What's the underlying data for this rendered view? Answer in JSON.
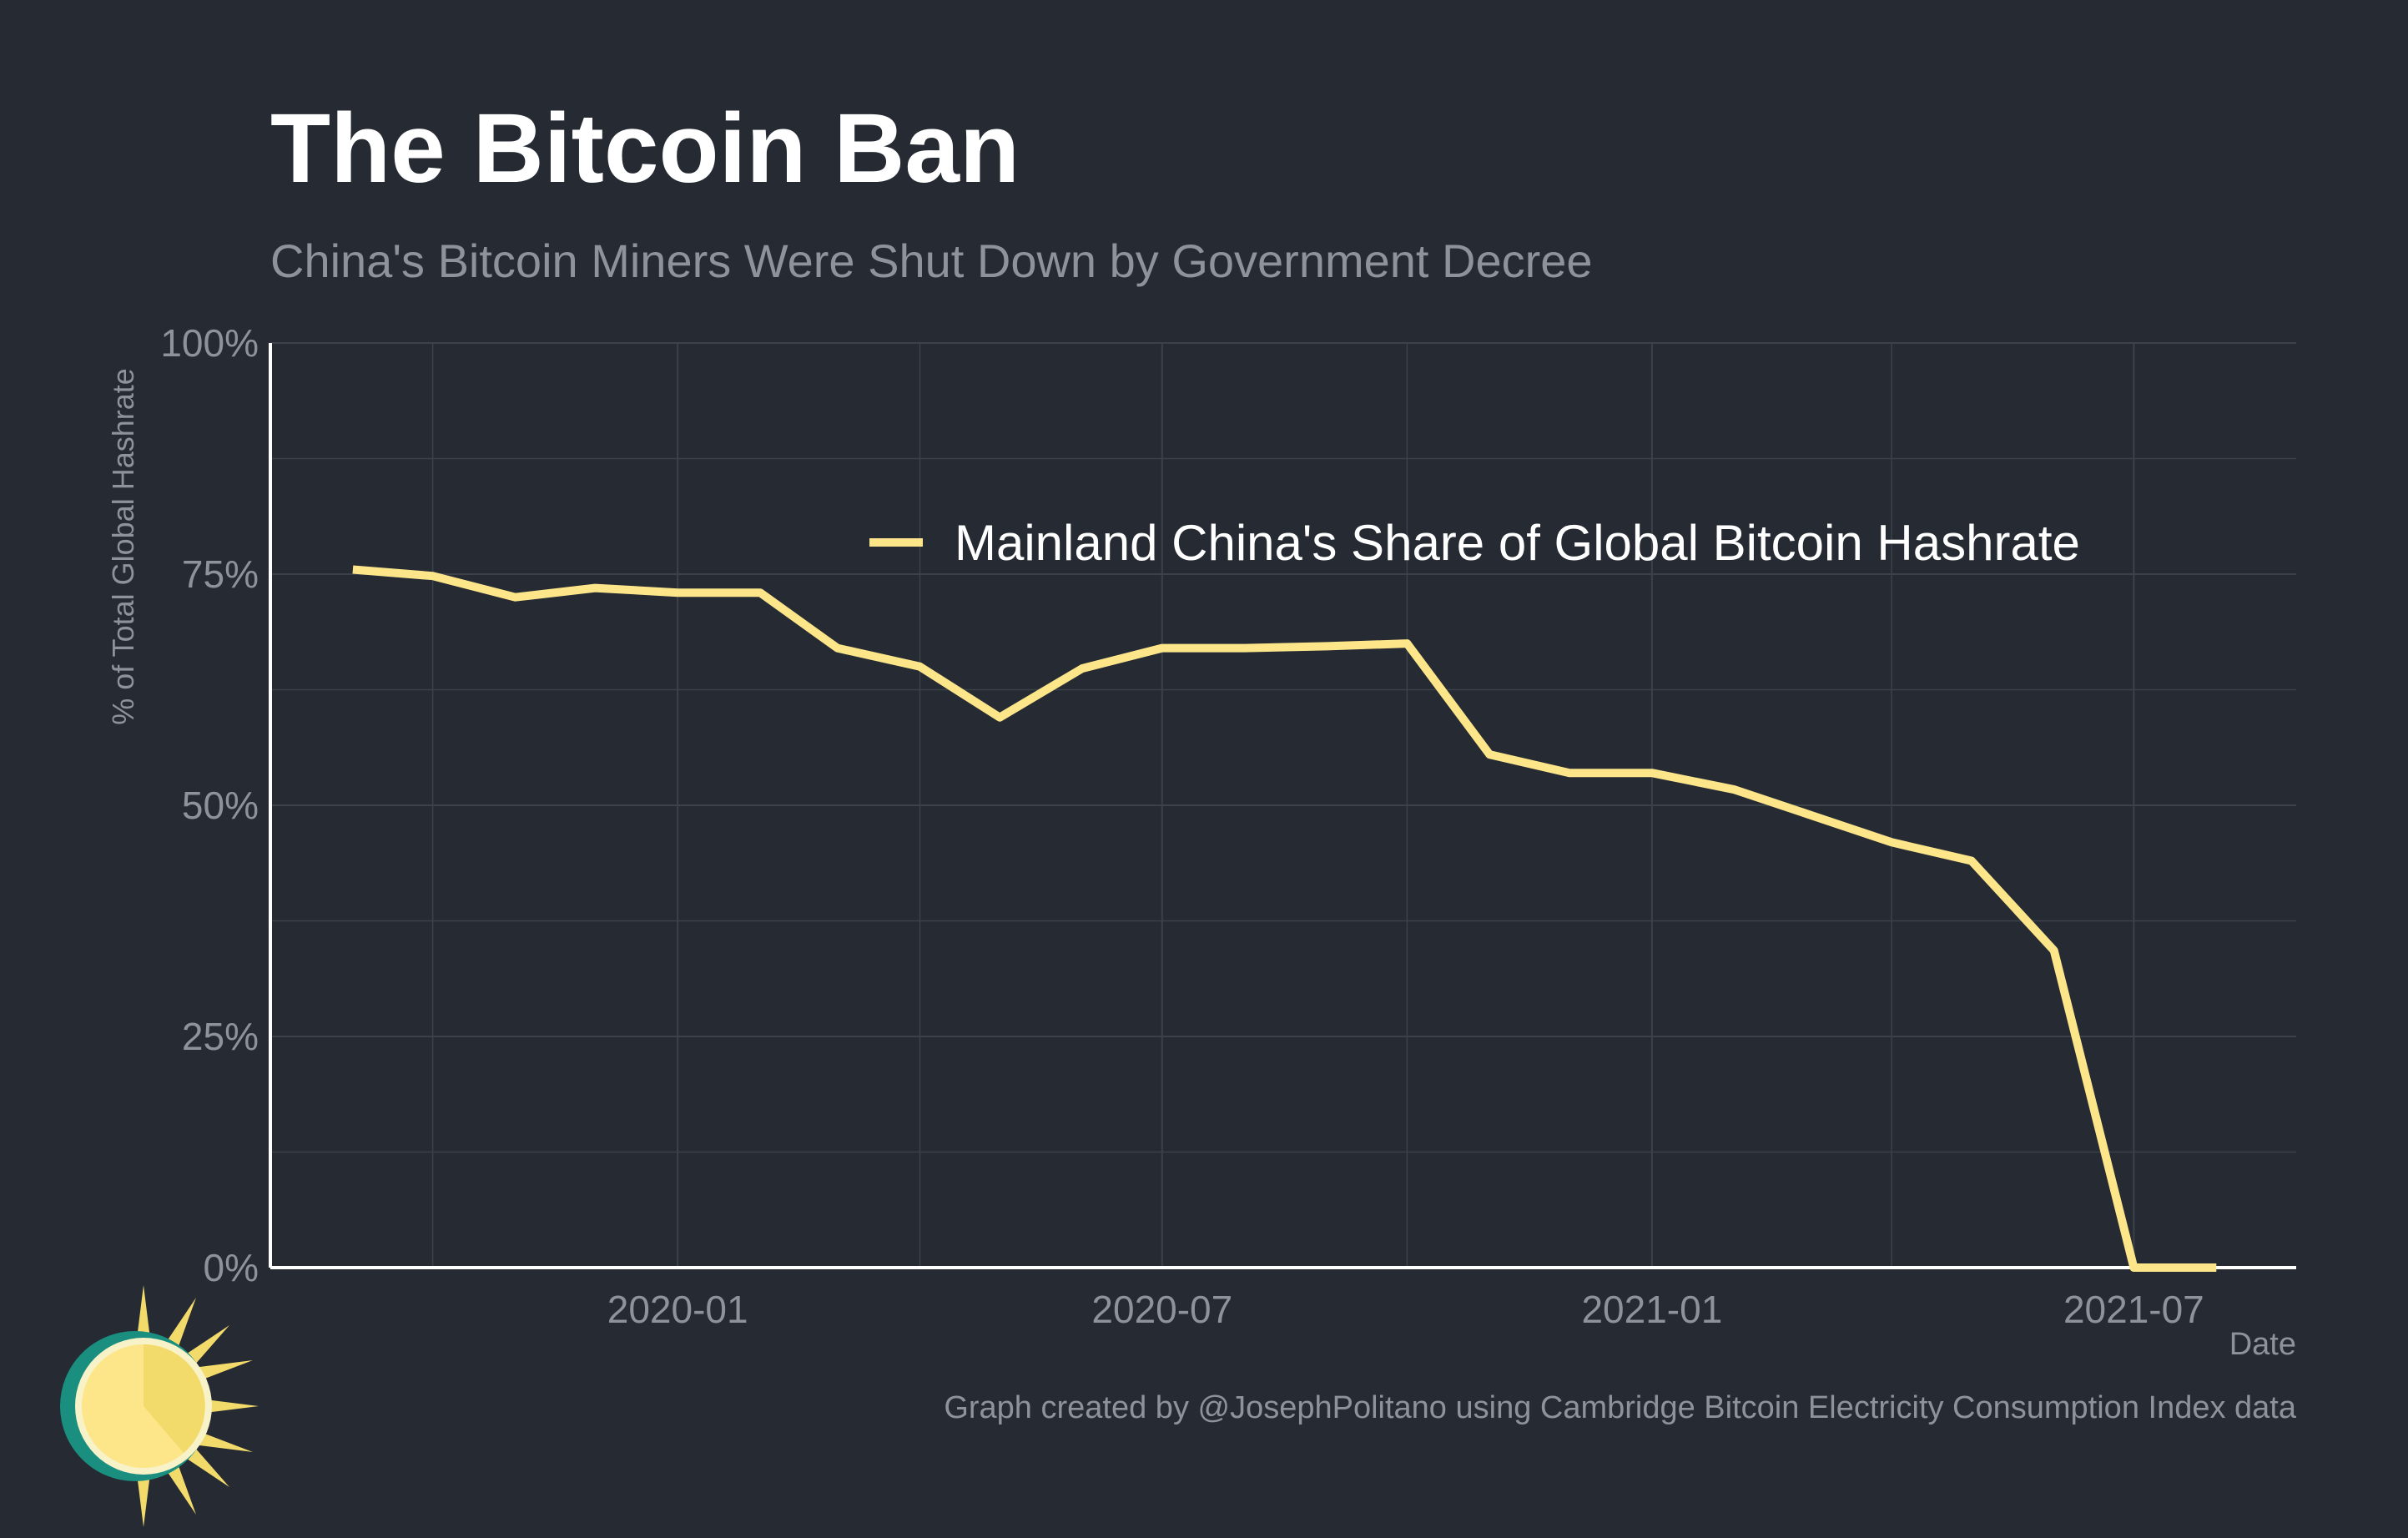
{
  "title": "The Bitcoin Ban",
  "subtitle": "China's Bitcoin Miners Were Shut Down by Government Decree",
  "caption": "Graph created by @JosephPolitano using Cambridge Bitcoin Electricity Consumption Index data",
  "logo_icon": "sun-logo-icon",
  "colors": {
    "background": "#252a33",
    "line": "#fde68a",
    "grid": "#3c414a",
    "axis": "#ffffff",
    "muted_text": "#8e939b"
  },
  "chart_data": {
    "type": "line",
    "title": "The Bitcoin Ban",
    "subtitle": "China's Bitcoin Miners Were Shut Down by Government Decree",
    "xlabel": "Date",
    "ylabel": "% of Total Global Hashrate",
    "x_ticks": [
      "2020-01",
      "2020-07",
      "2021-01",
      "2021-07"
    ],
    "y_ticks": [
      "0%",
      "25%",
      "50%",
      "75%",
      "100%"
    ],
    "ylim": [
      0,
      100
    ],
    "xlim": [
      "2019-08-01",
      "2021-08-31"
    ],
    "legend_position": "top-right",
    "grid": true,
    "series": [
      {
        "name": "Mainland China's Share of Global Bitcoin Hashrate",
        "color": "#fde68a",
        "x": [
          "2019-09-01",
          "2019-10-01",
          "2019-11-01",
          "2019-12-01",
          "2020-01-01",
          "2020-02-01",
          "2020-03-01",
          "2020-04-01",
          "2020-05-01",
          "2020-06-01",
          "2020-07-01",
          "2020-08-01",
          "2020-09-01",
          "2020-10-01",
          "2020-11-01",
          "2020-12-01",
          "2021-01-01",
          "2021-02-01",
          "2021-03-01",
          "2021-04-01",
          "2021-05-01",
          "2021-06-01",
          "2021-07-01",
          "2021-08-01"
        ],
        "values": [
          75.5,
          74.8,
          72.5,
          73.5,
          73.0,
          73.0,
          67.0,
          65.0,
          59.5,
          64.8,
          67.0,
          67.0,
          67.2,
          67.5,
          55.5,
          53.5,
          53.5,
          51.7,
          49.0,
          46.0,
          44.0,
          34.3,
          0.0,
          0.0
        ]
      }
    ]
  }
}
